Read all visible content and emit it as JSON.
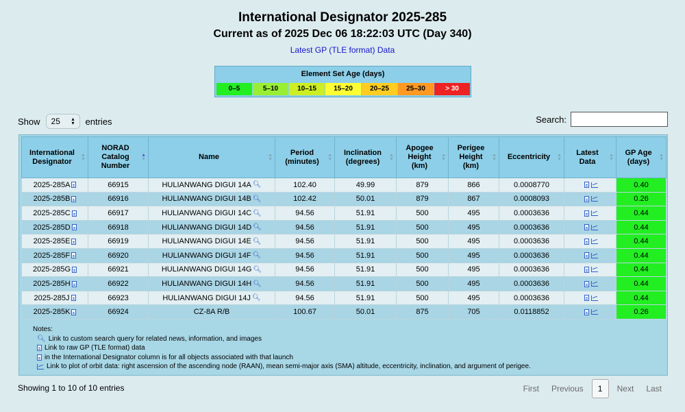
{
  "header": {
    "title": "International Designator 2025-285",
    "subtitle": "Current as of 2025 Dec 06 18:22:03 UTC (Day 340)",
    "tle_link": "Latest GP (TLE format) Data"
  },
  "age_legend": {
    "title": "Element Set Age (days)",
    "cells": [
      {
        "label": "0–5",
        "color": "#22ee22"
      },
      {
        "label": "5–10",
        "color": "#99ee33"
      },
      {
        "label": "10–15",
        "color": "#ccee22"
      },
      {
        "label": "15–20",
        "color": "#ffff33"
      },
      {
        "label": "20–25",
        "color": "#ffcc22"
      },
      {
        "label": "25–30",
        "color": "#ff9922"
      },
      {
        "label": "> 30",
        "color": "#ee2222"
      }
    ]
  },
  "controls": {
    "show_label": "Show",
    "entries_value": "25",
    "entries_label": "entries",
    "search_label": "Search:"
  },
  "table": {
    "headers": [
      "International Designator",
      "NORAD Catalog Number",
      "Name",
      "Period (minutes)",
      "Inclination (degrees)",
      "Apogee Height (km)",
      "Perigee Height (km)",
      "Eccentricity",
      "Latest Data",
      "GP Age (days)"
    ],
    "rows": [
      {
        "id": "2025-285A",
        "norad": "66915",
        "name": "HULIANWANG DIGUI 14A",
        "period": "102.40",
        "incl": "49.99",
        "apogee": "879",
        "perigee": "866",
        "ecc": "0.0008770",
        "age": "0.40"
      },
      {
        "id": "2025-285B",
        "norad": "66916",
        "name": "HULIANWANG DIGUI 14B",
        "period": "102.42",
        "incl": "50.01",
        "apogee": "879",
        "perigee": "867",
        "ecc": "0.0008093",
        "age": "0.26"
      },
      {
        "id": "2025-285C",
        "norad": "66917",
        "name": "HULIANWANG DIGUI 14C",
        "period": "94.56",
        "incl": "51.91",
        "apogee": "500",
        "perigee": "495",
        "ecc": "0.0003636",
        "age": "0.44"
      },
      {
        "id": "2025-285D",
        "norad": "66918",
        "name": "HULIANWANG DIGUI 14D",
        "period": "94.56",
        "incl": "51.91",
        "apogee": "500",
        "perigee": "495",
        "ecc": "0.0003636",
        "age": "0.44"
      },
      {
        "id": "2025-285E",
        "norad": "66919",
        "name": "HULIANWANG DIGUI 14E",
        "period": "94.56",
        "incl": "51.91",
        "apogee": "500",
        "perigee": "495",
        "ecc": "0.0003636",
        "age": "0.44"
      },
      {
        "id": "2025-285F",
        "norad": "66920",
        "name": "HULIANWANG DIGUI 14F",
        "period": "94.56",
        "incl": "51.91",
        "apogee": "500",
        "perigee": "495",
        "ecc": "0.0003636",
        "age": "0.44"
      },
      {
        "id": "2025-285G",
        "norad": "66921",
        "name": "HULIANWANG DIGUI 14G",
        "period": "94.56",
        "incl": "51.91",
        "apogee": "500",
        "perigee": "495",
        "ecc": "0.0003636",
        "age": "0.44"
      },
      {
        "id": "2025-285H",
        "norad": "66922",
        "name": "HULIANWANG DIGUI 14H",
        "period": "94.56",
        "incl": "51.91",
        "apogee": "500",
        "perigee": "495",
        "ecc": "0.0003636",
        "age": "0.44"
      },
      {
        "id": "2025-285J",
        "norad": "66923",
        "name": "HULIANWANG DIGUI 14J",
        "period": "94.56",
        "incl": "51.91",
        "apogee": "500",
        "perigee": "495",
        "ecc": "0.0003636",
        "age": "0.44"
      },
      {
        "id": "2025-285K",
        "norad": "66924",
        "name": "CZ-8A R/B",
        "period": "100.67",
        "incl": "50.01",
        "apogee": "875",
        "perigee": "705",
        "ecc": "0.0118852",
        "age": "0.26"
      }
    ]
  },
  "notes": {
    "title": "Notes:",
    "search": "Link to custom search query for related news, information, and images",
    "raw": "Link to raw GP (TLE format) data",
    "designator": "in the International Designator column is for all objects associated with that launch",
    "plot": "Link to plot of orbit data: right ascension of the ascending node (RAAN), mean semi-major axis (SMA) altitude, eccentricity, inclination, and argument of perigee."
  },
  "footer": {
    "showing": "Showing 1 to 10 of 10 entries",
    "first": "First",
    "previous": "Previous",
    "page": "1",
    "next": "Next",
    "last": "Last"
  }
}
